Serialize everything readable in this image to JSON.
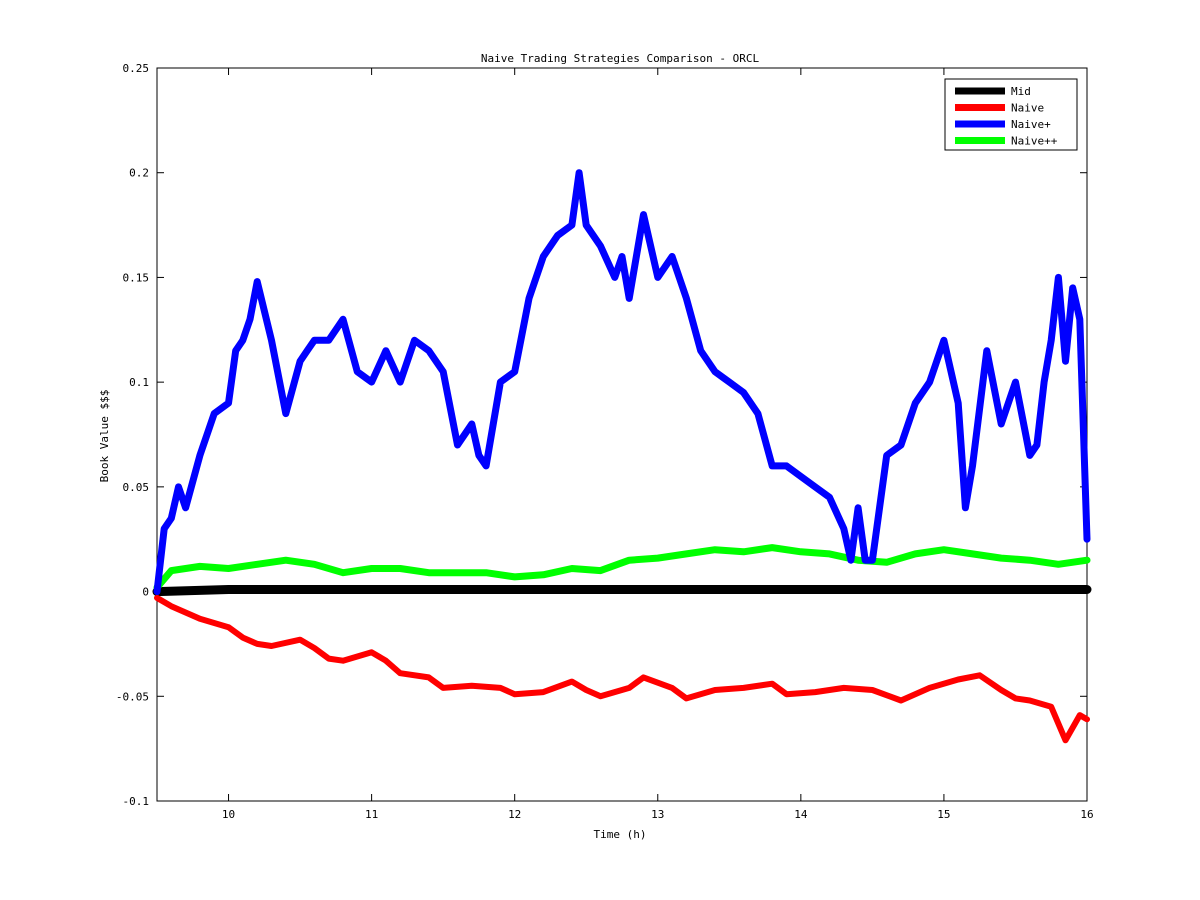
{
  "chart_data": {
    "type": "line",
    "title": "Naive Trading Strategies Comparison - ORCL",
    "xlabel": "Time (h)",
    "ylabel": "Book Value $$$",
    "xlim": [
      9.5,
      16
    ],
    "ylim": [
      -0.1,
      0.25
    ],
    "xticks": [
      10,
      11,
      12,
      13,
      14,
      15,
      16
    ],
    "xtick_labels": [
      "10",
      "11",
      "12",
      "13",
      "14",
      "15",
      "16"
    ],
    "yticks": [
      -0.1,
      -0.05,
      0,
      0.05,
      0.1,
      0.15,
      0.2,
      0.25
    ],
    "ytick_labels": [
      "-0.1",
      "-0.05",
      "0",
      "0.05",
      "0.1",
      "0.15",
      "0.2",
      "0.25"
    ],
    "grid": false,
    "legend_position": "top-right",
    "series": [
      {
        "name": "Mid",
        "color": "#000000",
        "x": [
          9.5,
          10,
          11,
          12,
          13,
          14,
          15,
          16
        ],
        "y": [
          0.0,
          0.001,
          0.001,
          0.001,
          0.001,
          0.001,
          0.001,
          0.001
        ]
      },
      {
        "name": "Naive",
        "color": "#ff0000",
        "x": [
          9.5,
          9.6,
          9.8,
          10.0,
          10.1,
          10.2,
          10.3,
          10.5,
          10.6,
          10.7,
          10.8,
          11.0,
          11.1,
          11.2,
          11.4,
          11.5,
          11.7,
          11.9,
          12.0,
          12.2,
          12.4,
          12.5,
          12.6,
          12.8,
          12.9,
          13.1,
          13.2,
          13.4,
          13.6,
          13.8,
          13.9,
          14.1,
          14.3,
          14.5,
          14.7,
          14.9,
          15.1,
          15.25,
          15.4,
          15.5,
          15.6,
          15.75,
          15.85,
          15.95,
          16.0
        ],
        "y": [
          -0.003,
          -0.007,
          -0.013,
          -0.017,
          -0.022,
          -0.025,
          -0.026,
          -0.023,
          -0.027,
          -0.032,
          -0.033,
          -0.029,
          -0.033,
          -0.039,
          -0.041,
          -0.046,
          -0.045,
          -0.046,
          -0.049,
          -0.048,
          -0.043,
          -0.047,
          -0.05,
          -0.046,
          -0.041,
          -0.046,
          -0.051,
          -0.047,
          -0.046,
          -0.044,
          -0.049,
          -0.048,
          -0.046,
          -0.047,
          -0.052,
          -0.046,
          -0.042,
          -0.04,
          -0.047,
          -0.051,
          -0.052,
          -0.055,
          -0.071,
          -0.059,
          -0.061
        ]
      },
      {
        "name": "Naive+",
        "color": "#0000ff",
        "x": [
          9.5,
          9.55,
          9.6,
          9.65,
          9.7,
          9.8,
          9.9,
          10.0,
          10.05,
          10.1,
          10.15,
          10.2,
          10.3,
          10.4,
          10.5,
          10.55,
          10.6,
          10.7,
          10.8,
          10.9,
          11.0,
          11.1,
          11.2,
          11.3,
          11.4,
          11.5,
          11.6,
          11.7,
          11.75,
          11.8,
          11.9,
          12.0,
          12.1,
          12.2,
          12.3,
          12.4,
          12.45,
          12.5,
          12.6,
          12.7,
          12.75,
          12.8,
          12.9,
          13.0,
          13.1,
          13.2,
          13.3,
          13.4,
          13.5,
          13.6,
          13.7,
          13.8,
          13.9,
          14.0,
          14.1,
          14.2,
          14.3,
          14.35,
          14.4,
          14.45,
          14.5,
          14.6,
          14.7,
          14.8,
          14.9,
          15.0,
          15.1,
          15.15,
          15.2,
          15.3,
          15.4,
          15.5,
          15.6,
          15.65,
          15.7,
          15.75,
          15.8,
          15.85,
          15.9,
          15.95,
          16.0
        ],
        "y": [
          0.0,
          0.03,
          0.035,
          0.05,
          0.04,
          0.065,
          0.085,
          0.09,
          0.115,
          0.12,
          0.13,
          0.148,
          0.12,
          0.085,
          0.11,
          0.115,
          0.12,
          0.12,
          0.13,
          0.105,
          0.1,
          0.115,
          0.1,
          0.12,
          0.115,
          0.105,
          0.07,
          0.08,
          0.065,
          0.06,
          0.1,
          0.105,
          0.14,
          0.16,
          0.17,
          0.175,
          0.2,
          0.175,
          0.165,
          0.15,
          0.16,
          0.14,
          0.18,
          0.15,
          0.16,
          0.14,
          0.115,
          0.105,
          0.1,
          0.095,
          0.085,
          0.06,
          0.06,
          0.055,
          0.05,
          0.045,
          0.03,
          0.015,
          0.04,
          0.015,
          0.015,
          0.065,
          0.07,
          0.09,
          0.1,
          0.12,
          0.09,
          0.04,
          0.06,
          0.115,
          0.08,
          0.1,
          0.065,
          0.07,
          0.1,
          0.12,
          0.15,
          0.11,
          0.145,
          0.13,
          0.025
        ]
      },
      {
        "name": "Naive++",
        "color": "#00ff00",
        "x": [
          9.5,
          9.6,
          9.8,
          10.0,
          10.2,
          10.4,
          10.6,
          10.8,
          11.0,
          11.2,
          11.4,
          11.6,
          11.8,
          12.0,
          12.2,
          12.4,
          12.6,
          12.8,
          13.0,
          13.2,
          13.4,
          13.6,
          13.8,
          14.0,
          14.2,
          14.4,
          14.6,
          14.8,
          15.0,
          15.2,
          15.4,
          15.6,
          15.8,
          16.0
        ],
        "y": [
          0.002,
          0.01,
          0.012,
          0.011,
          0.013,
          0.015,
          0.013,
          0.009,
          0.011,
          0.011,
          0.009,
          0.009,
          0.009,
          0.007,
          0.008,
          0.011,
          0.01,
          0.015,
          0.016,
          0.018,
          0.02,
          0.019,
          0.021,
          0.019,
          0.018,
          0.015,
          0.014,
          0.018,
          0.02,
          0.018,
          0.016,
          0.015,
          0.013,
          0.015
        ]
      }
    ]
  }
}
